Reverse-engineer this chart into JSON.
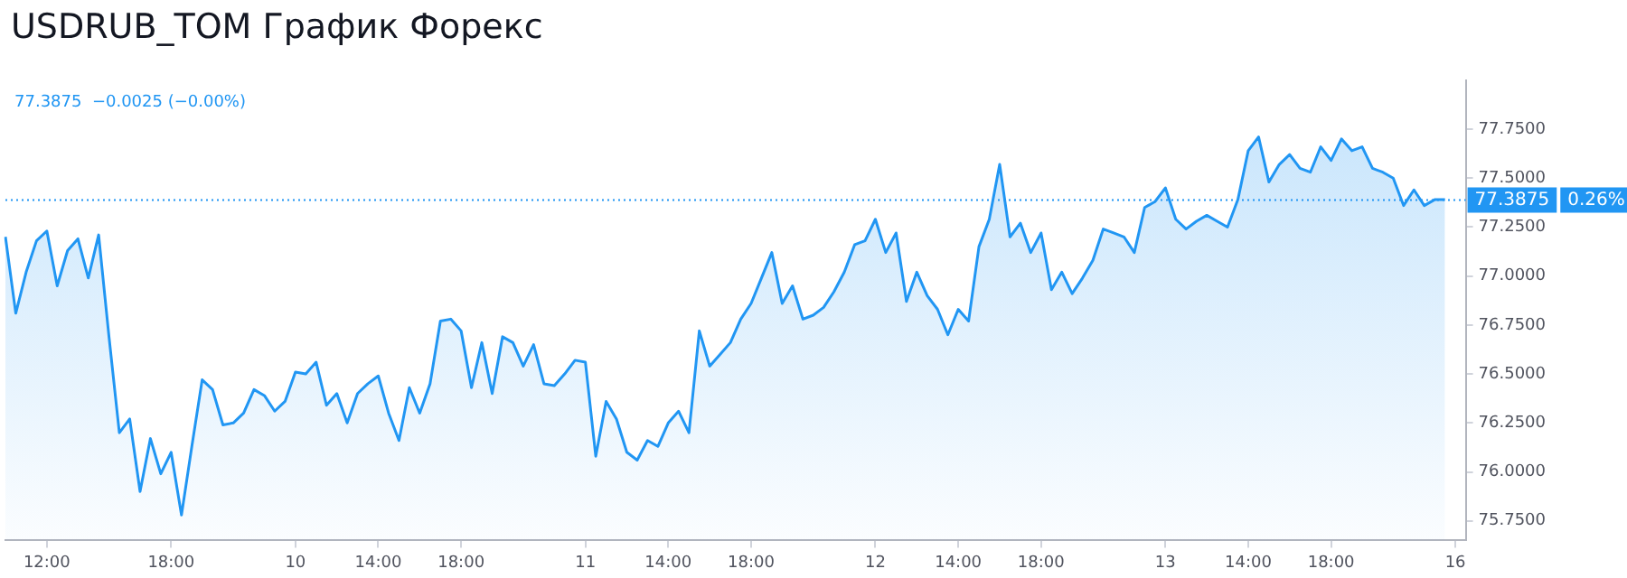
{
  "chart_data": {
    "type": "area",
    "title": "USDRUB_TOM График Форекс",
    "categories": [
      null,
      null,
      null,
      null,
      "12:00",
      null,
      null,
      null,
      null,
      null,
      null,
      null,
      null,
      null,
      null,
      null,
      "18:00",
      null,
      null,
      null,
      null,
      null,
      null,
      null,
      null,
      null,
      null,
      null,
      "10",
      null,
      null,
      null,
      null,
      null,
      null,
      null,
      "14:00",
      null,
      null,
      null,
      null,
      null,
      null,
      null,
      "18:00",
      null,
      null,
      null,
      null,
      null,
      null,
      null,
      null,
      null,
      null,
      null,
      "11",
      null,
      null,
      null,
      null,
      null,
      null,
      null,
      "14:00",
      null,
      null,
      null,
      null,
      null,
      null,
      null,
      "18:00",
      null,
      null,
      null,
      null,
      null,
      null,
      null,
      null,
      null,
      null,
      null,
      "12",
      null,
      null,
      null,
      null,
      null,
      null,
      null,
      "14:00",
      null,
      null,
      null,
      null,
      null,
      null,
      null,
      "18:00",
      null,
      null,
      null,
      null,
      null,
      null,
      null,
      null,
      null,
      null,
      null,
      "13",
      null,
      null,
      null,
      null,
      null,
      null,
      null,
      "14:00",
      null,
      null,
      null,
      null,
      null,
      null,
      null,
      "18:00",
      null,
      null,
      null,
      null,
      null,
      null,
      null,
      null,
      null,
      null,
      null,
      "16",
      null
    ],
    "series": [
      {
        "color": "#2196f3",
        "values": [
          77.2,
          76.81,
          77.02,
          77.18,
          77.23,
          76.95,
          77.13,
          77.19,
          76.99,
          77.21,
          76.69,
          76.2,
          76.27,
          75.9,
          76.17,
          75.99,
          76.1,
          75.78,
          76.13,
          76.47,
          76.42,
          76.24,
          76.25,
          76.3,
          76.42,
          76.39,
          76.31,
          76.36,
          76.51,
          76.5,
          76.56,
          76.34,
          76.4,
          76.25,
          76.4,
          76.45,
          76.49,
          76.3,
          76.16,
          76.43,
          76.3,
          76.45,
          76.77,
          76.78,
          76.72,
          76.43,
          76.66,
          76.4,
          76.69,
          76.66,
          76.54,
          76.65,
          76.45,
          76.44,
          76.5,
          76.57,
          76.56,
          76.08,
          76.36,
          76.27,
          76.1,
          76.06,
          76.16,
          76.13,
          76.25,
          76.31,
          76.2,
          76.72,
          76.54,
          76.6,
          76.66,
          76.78,
          76.86,
          76.99,
          77.12,
          76.86,
          76.95,
          76.78,
          76.8,
          76.84,
          76.92,
          77.02,
          77.16,
          77.18,
          77.29,
          77.12,
          77.22,
          76.87,
          77.02,
          76.9,
          76.83,
          76.7,
          76.83,
          76.77,
          77.15,
          77.29,
          77.57,
          77.2,
          77.27,
          77.12,
          77.22,
          76.93,
          77.02,
          76.91,
          76.99,
          77.08,
          77.24,
          77.22,
          77.2,
          77.12,
          77.35,
          77.38,
          77.45,
          77.29,
          77.24,
          77.28,
          77.31,
          77.28,
          77.25,
          77.39,
          77.64,
          77.71,
          77.48,
          77.57,
          77.62,
          77.55,
          77.53,
          77.66,
          77.59,
          77.7,
          77.64,
          77.66,
          77.55,
          77.53,
          77.5,
          77.36,
          77.44,
          77.36,
          77.39,
          77.39,
          null,
          null
        ]
      }
    ],
    "ylim": [
      75.65,
      78.0
    ],
    "yticks": [
      {
        "value": 75.75,
        "label": "75.7500"
      },
      {
        "value": 76.0,
        "label": "76.0000"
      },
      {
        "value": 76.25,
        "label": "76.2500"
      },
      {
        "value": 76.5,
        "label": "76.5000"
      },
      {
        "value": 76.75,
        "label": "76.7500"
      },
      {
        "value": 77.0,
        "label": "77.0000"
      },
      {
        "value": 77.25,
        "label": "77.2500"
      },
      {
        "value": 77.5,
        "label": "77.5000"
      },
      {
        "value": 77.75,
        "label": "77.7500"
      }
    ],
    "ref_lines": [
      {
        "axis": "y",
        "value": 77.3875,
        "label": "77.3875",
        "color": "#2196f3",
        "line_style": "dotted"
      }
    ],
    "annotations": [
      "77.3875  −0.0025 (−0.00%)",
      "0.26%"
    ],
    "grid": false,
    "legend": false,
    "marker": "none",
    "line_style": "solid"
  }
}
